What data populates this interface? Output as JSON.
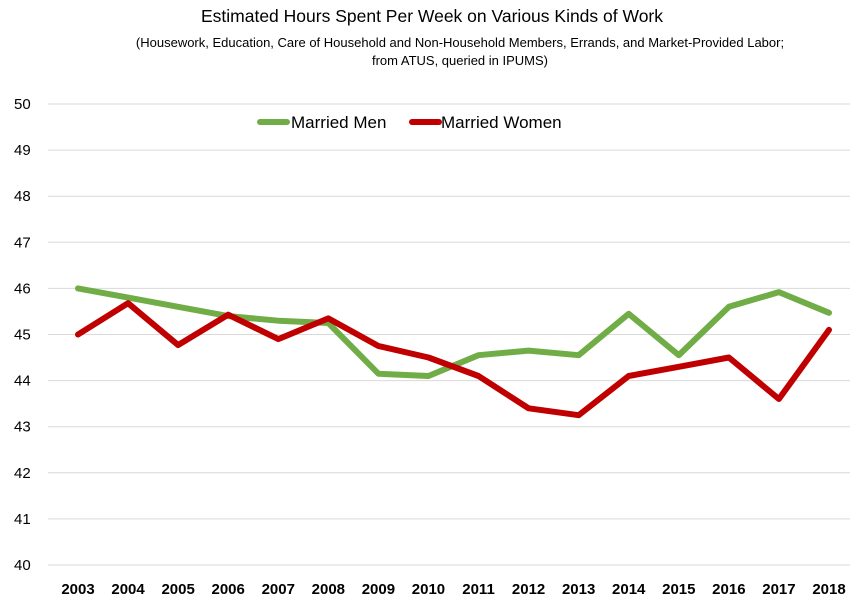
{
  "chart_data": {
    "type": "line",
    "title": "Estimated Hours Spent Per Week on Various Kinds of Work",
    "subtitle": "(Housework, Education, Care of Household and Non-Household Members, Errands, and Market-Provided Labor; from ATUS, queried in IPUMS)",
    "xlabel": "",
    "ylabel": "",
    "ylim": [
      40,
      50
    ],
    "yticks": [
      "40",
      "41",
      "42",
      "43",
      "44",
      "45",
      "46",
      "47",
      "48",
      "49",
      "50"
    ],
    "categories": [
      "2003",
      "2004",
      "2005",
      "2006",
      "2007",
      "2008",
      "2009",
      "2010",
      "2011",
      "2012",
      "2013",
      "2014",
      "2015",
      "2016",
      "2017",
      "2018"
    ],
    "grid": true,
    "legend_position": "top",
    "series": [
      {
        "name": "Married Men",
        "color": "#70ad47",
        "values": [
          46.0,
          45.8,
          45.6,
          45.4,
          45.3,
          45.25,
          44.15,
          44.1,
          44.55,
          44.65,
          44.55,
          45.45,
          44.55,
          45.6,
          45.92,
          45.47
        ]
      },
      {
        "name": "Married Women",
        "color": "#c00000",
        "values": [
          45.0,
          45.68,
          44.77,
          45.43,
          44.9,
          45.35,
          44.75,
          44.5,
          44.1,
          43.4,
          43.25,
          44.1,
          44.3,
          44.5,
          43.6,
          45.1
        ]
      }
    ]
  }
}
